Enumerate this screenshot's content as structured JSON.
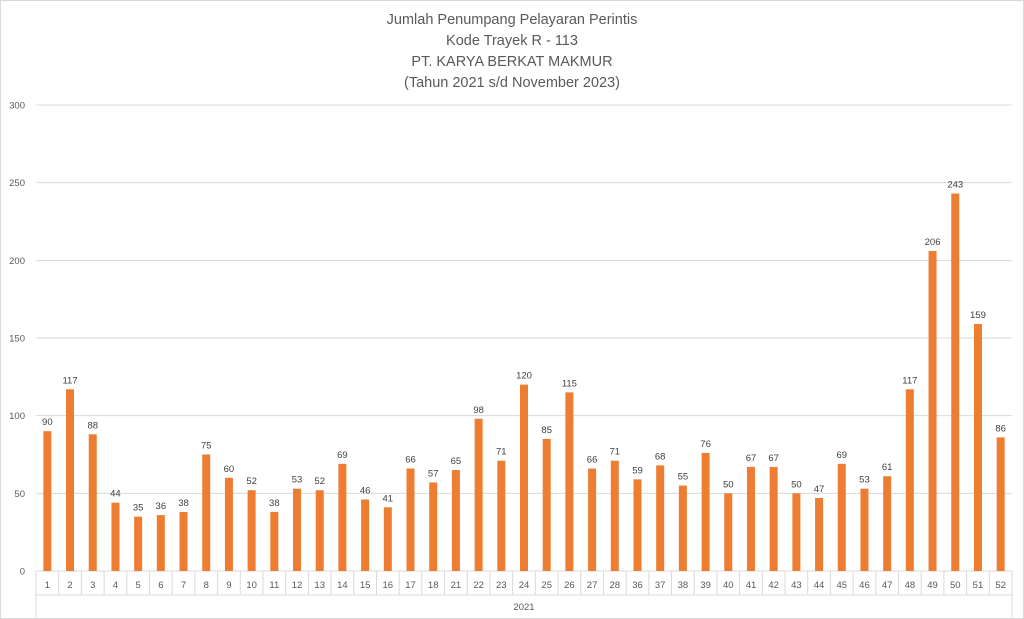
{
  "colors": {
    "bar": "#ed7d31",
    "grid": "#d9d9d9",
    "axis_text": "#595959"
  },
  "chart_data": {
    "type": "bar",
    "title_lines": [
      "Jumlah Penumpang Pelayaran Perintis",
      "Kode Trayek R - 113",
      "PT. KARYA BERKAT MAKMUR",
      "(Tahun 2021 s/d November 2023)"
    ],
    "categories": [
      "1",
      "2",
      "3",
      "4",
      "5",
      "6",
      "7",
      "8",
      "9",
      "10",
      "11",
      "12",
      "13",
      "14",
      "15",
      "16",
      "17",
      "18",
      "21",
      "22",
      "23",
      "24",
      "25",
      "26",
      "27",
      "28",
      "36",
      "37",
      "38",
      "39",
      "40",
      "41",
      "42",
      "43",
      "44",
      "45",
      "46",
      "47",
      "48",
      "49",
      "50",
      "51",
      "52"
    ],
    "values": [
      90,
      117,
      88,
      44,
      35,
      36,
      38,
      75,
      60,
      52,
      38,
      53,
      52,
      69,
      46,
      41,
      66,
      57,
      65,
      98,
      71,
      120,
      85,
      115,
      66,
      71,
      59,
      68,
      55,
      76,
      50,
      67,
      67,
      50,
      47,
      69,
      53,
      61,
      117,
      206,
      243,
      159,
      86
    ],
    "group_label": "2021",
    "ylim": [
      0,
      300
    ],
    "yticks": [
      0,
      50,
      100,
      150,
      200,
      250,
      300
    ],
    "grid": true,
    "legend": "none",
    "data_labels": true
  }
}
